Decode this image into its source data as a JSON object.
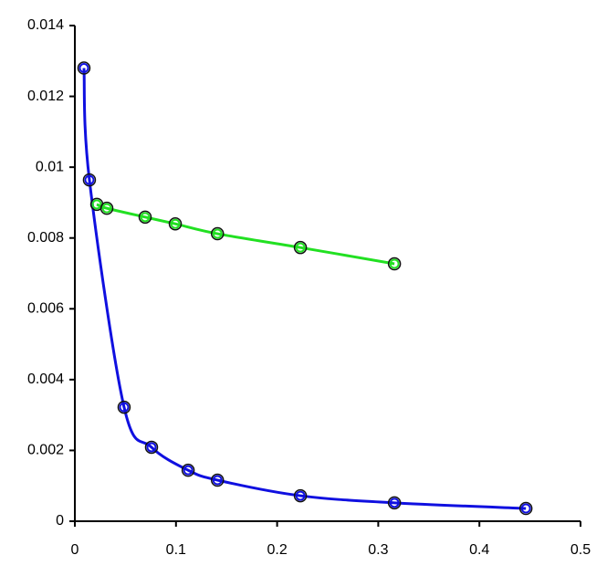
{
  "chart_data": {
    "type": "line",
    "series": [
      {
        "color": "#1010e0",
        "x": [
          0.009,
          0.0144,
          0.0487,
          0.0758,
          0.112,
          0.141,
          0.223,
          0.316,
          0.446
        ],
        "values": [
          0.0128,
          0.00964,
          0.00322,
          0.00209,
          0.00144,
          0.00116,
          0.00072,
          0.00052,
          0.00036
        ]
      },
      {
        "color": "#22e022",
        "x": [
          0.0217,
          0.0316,
          0.0695,
          0.0993,
          0.141,
          0.223,
          0.316
        ],
        "values": [
          0.00895,
          0.00884,
          0.00859,
          0.0084,
          0.00812,
          0.00773,
          0.00727
        ]
      }
    ],
    "xlim": [
      0,
      0.5
    ],
    "xticks": [
      0,
      0.1,
      0.2,
      0.3,
      0.4,
      0.5
    ],
    "ylim": [
      0,
      0.014
    ],
    "yticks": [
      0,
      0.002,
      0.004,
      0.006,
      0.008,
      0.01,
      0.012,
      0.014
    ],
    "grid": false
  }
}
